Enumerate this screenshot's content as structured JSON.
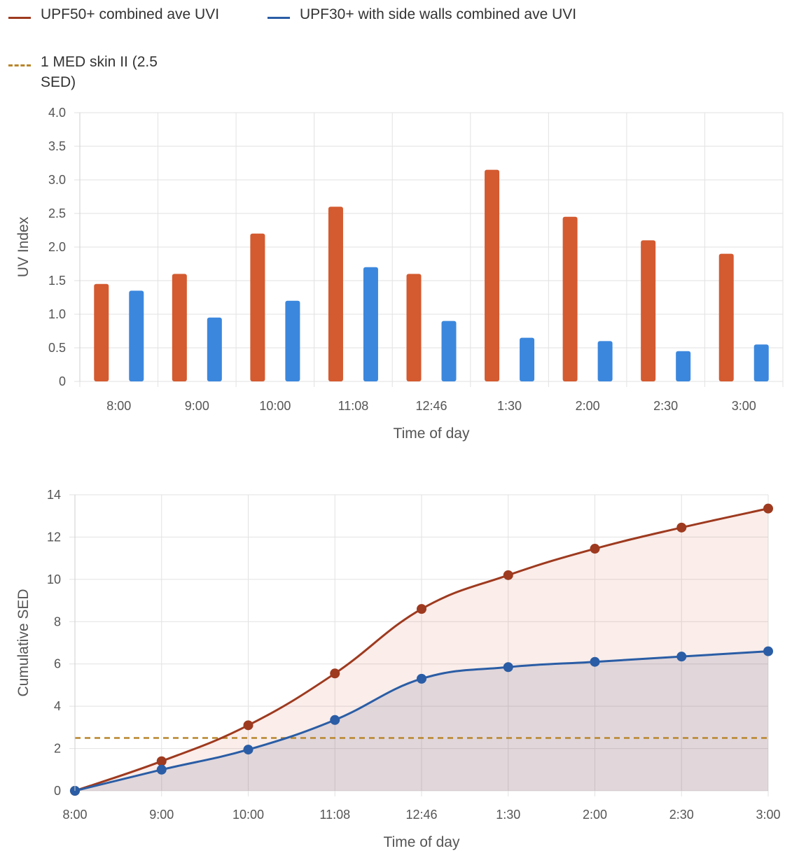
{
  "legend": {
    "items": [
      {
        "label": "UPF50+ combined ave UVI",
        "color": "#9e3a1f",
        "style": "solid"
      },
      {
        "label": "UPF30+ with side walls combined ave UVI",
        "color": "#2a5da5",
        "style": "solid"
      },
      {
        "label": "1 MED skin II (2.5 SED)",
        "color": "#b8852c",
        "style": "dashed"
      }
    ]
  },
  "colors": {
    "bar_red": "#d45a30",
    "bar_blue": "#3b87dd",
    "line_red": "#9e3a1f",
    "line_blue": "#2a5da5",
    "threshold": "#b8852c",
    "grid": "#e2e2e2"
  },
  "chart_data": [
    {
      "type": "bar",
      "categories": [
        "8:00",
        "9:00",
        "10:00",
        "11:08",
        "12:46",
        "1:30",
        "2:00",
        "2:30",
        "3:00"
      ],
      "series": [
        {
          "name": "UPF50+ combined ave UVI",
          "values": [
            1.45,
            1.6,
            2.2,
            2.6,
            1.6,
            3.15,
            2.45,
            2.1,
            1.9
          ]
        },
        {
          "name": "UPF30+ with side walls combined ave UVI",
          "values": [
            1.35,
            0.95,
            1.2,
            1.7,
            0.9,
            0.65,
            0.6,
            0.45,
            0.55
          ]
        }
      ],
      "xlabel": "Time of day",
      "ylabel": "UV Index",
      "ylim": [
        0,
        4
      ],
      "yticks": [
        "0",
        "0.5",
        "1.0",
        "1.5",
        "2.0",
        "2.5",
        "3.0",
        "3.5",
        "4.0"
      ],
      "grid": true
    },
    {
      "type": "area",
      "categories": [
        "8:00",
        "9:00",
        "10:00",
        "11:08",
        "12:46",
        "1:30",
        "2:00",
        "2:30",
        "3:00"
      ],
      "series": [
        {
          "name": "UPF50+ combined ave UVI",
          "values": [
            0,
            1.4,
            3.1,
            5.55,
            8.6,
            10.2,
            11.45,
            12.45,
            13.35
          ]
        },
        {
          "name": "UPF30+ with side walls combined ave UVI",
          "values": [
            0,
            1.0,
            1.95,
            3.35,
            5.3,
            5.85,
            6.1,
            6.35,
            6.6
          ]
        }
      ],
      "threshold": {
        "name": "1 MED skin II (2.5 SED)",
        "value": 2.5
      },
      "xlabel": "Time of day",
      "ylabel": "Cumulative SED",
      "ylim": [
        0,
        14
      ],
      "yticks": [
        "0",
        "2",
        "4",
        "6",
        "8",
        "10",
        "12",
        "14"
      ],
      "grid": true
    }
  ]
}
